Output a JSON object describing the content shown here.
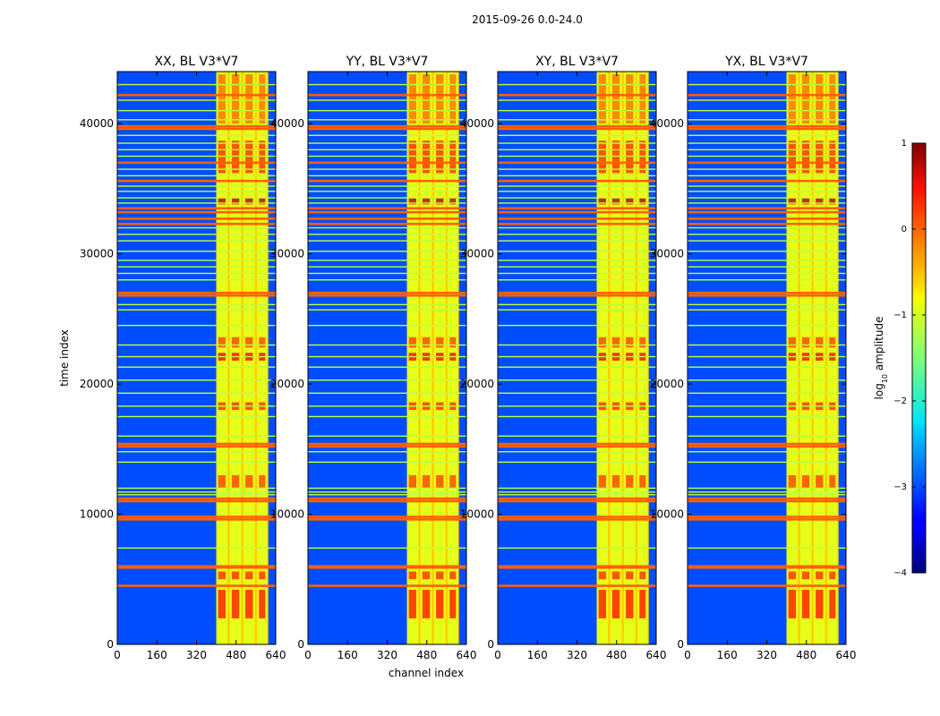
{
  "chart_data": {
    "type": "heatmap",
    "title": "2015-09-26 0.0-24.0",
    "xlabel": "channel index",
    "ylabel": "time index",
    "colorbar_label": "log10 amplitude",
    "colorbar_label_base": "log",
    "colorbar_label_sub": "10",
    "colorbar_label_rest": " amplitude",
    "colormap": "jet",
    "clim": [
      -4,
      1
    ],
    "colorbar_ticks": [
      "1",
      "0",
      "−1",
      "−2",
      "−3",
      "−4"
    ],
    "colorbar_tick_values": [
      1,
      0,
      -1,
      -2,
      -3,
      -4
    ],
    "xlim": [
      0,
      640
    ],
    "ylim": [
      0,
      44000
    ],
    "x_ticks": [
      0,
      160,
      320,
      480,
      640
    ],
    "x_tick_labels": [
      "0",
      "160",
      "320",
      "480",
      "640"
    ],
    "y_ticks": [
      0,
      10000,
      20000,
      30000,
      40000
    ],
    "y_tick_labels": [
      "0",
      "10000",
      "20000",
      "30000",
      "40000"
    ],
    "background_level": -3.0,
    "band_channels": [
      400,
      610
    ],
    "band_level": -1.0,
    "band_subcolumns": [
      [
        400,
        445
      ],
      [
        455,
        500
      ],
      [
        510,
        555
      ],
      [
        565,
        605
      ]
    ],
    "rfi_times_strong": [
      4500,
      5900,
      6000,
      9600,
      9800,
      11000,
      11200,
      15200,
      15400,
      26800,
      27000,
      32300,
      32700,
      33200,
      33500,
      35600,
      37000,
      39600,
      39800,
      42200
    ],
    "rfi_times_medium": [
      7400,
      11500,
      11700,
      12000,
      14000,
      14800,
      16000,
      17500,
      18300,
      19300,
      20300,
      21300,
      22100,
      23000,
      24500,
      25700,
      26100,
      28000,
      28500,
      29000,
      29500,
      30200,
      31000,
      31500,
      32000,
      33900,
      34300,
      34800,
      35200,
      36000,
      36500,
      37500,
      38000,
      38500,
      39100,
      40300,
      41000,
      41800,
      43000
    ],
    "hot_blocks": [
      [
        2000,
        4200,
        0.2
      ],
      [
        5000,
        5600,
        0.1
      ],
      [
        12000,
        13000,
        0.0
      ],
      [
        18000,
        18600,
        0.1
      ],
      [
        21800,
        22400,
        0.3
      ],
      [
        22800,
        23600,
        0.0
      ],
      [
        33800,
        34300,
        0.6
      ],
      [
        36200,
        38700,
        0.1
      ],
      [
        40000,
        43800,
        -0.2
      ]
    ],
    "panels": [
      {
        "id": "xx",
        "title": "XX, BL V3*V7"
      },
      {
        "id": "yy",
        "title": "YY, BL V3*V7"
      },
      {
        "id": "xy",
        "title": "XY, BL V3*V7"
      },
      {
        "id": "yx",
        "title": "YX, BL V3*V7"
      }
    ]
  }
}
